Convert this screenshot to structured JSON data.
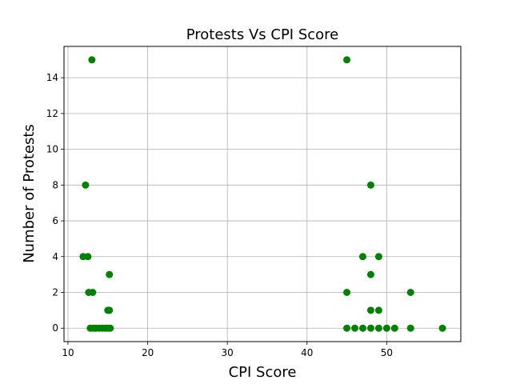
{
  "chart_data": {
    "type": "scatter",
    "title": "Protests Vs CPI Score",
    "xlabel": "CPI Score",
    "ylabel": "Number of Protests",
    "xlim": [
      9.5,
      59.3
    ],
    "ylim": [
      -0.75,
      15.75
    ],
    "xticks": [
      10,
      20,
      30,
      40,
      50
    ],
    "yticks": [
      0,
      2,
      4,
      6,
      8,
      10,
      12,
      14
    ],
    "grid": true,
    "marker_color": "#008000",
    "series": [
      {
        "points": [
          {
            "x": 13.0,
            "y": 15
          },
          {
            "x": 12.2,
            "y": 8
          },
          {
            "x": 11.9,
            "y": 4
          },
          {
            "x": 12.5,
            "y": 4
          },
          {
            "x": 12.6,
            "y": 2
          },
          {
            "x": 13.1,
            "y": 2
          },
          {
            "x": 15.2,
            "y": 3
          },
          {
            "x": 15.0,
            "y": 1
          },
          {
            "x": 15.2,
            "y": 1
          },
          {
            "x": 12.8,
            "y": 0
          },
          {
            "x": 13.2,
            "y": 0
          },
          {
            "x": 13.5,
            "y": 0
          },
          {
            "x": 13.9,
            "y": 0
          },
          {
            "x": 14.3,
            "y": 0
          },
          {
            "x": 14.7,
            "y": 0
          },
          {
            "x": 15.0,
            "y": 0
          },
          {
            "x": 15.3,
            "y": 0
          },
          {
            "x": 45.0,
            "y": 15
          },
          {
            "x": 48.0,
            "y": 8
          },
          {
            "x": 47.0,
            "y": 4
          },
          {
            "x": 49.0,
            "y": 4
          },
          {
            "x": 48.0,
            "y": 3
          },
          {
            "x": 45.0,
            "y": 2
          },
          {
            "x": 53.0,
            "y": 2
          },
          {
            "x": 48.0,
            "y": 1
          },
          {
            "x": 49.0,
            "y": 1
          },
          {
            "x": 45.0,
            "y": 0
          },
          {
            "x": 46.0,
            "y": 0
          },
          {
            "x": 47.0,
            "y": 0
          },
          {
            "x": 48.0,
            "y": 0
          },
          {
            "x": 49.0,
            "y": 0
          },
          {
            "x": 50.0,
            "y": 0
          },
          {
            "x": 51.0,
            "y": 0
          },
          {
            "x": 53.0,
            "y": 0
          },
          {
            "x": 57.0,
            "y": 0
          }
        ]
      }
    ]
  }
}
